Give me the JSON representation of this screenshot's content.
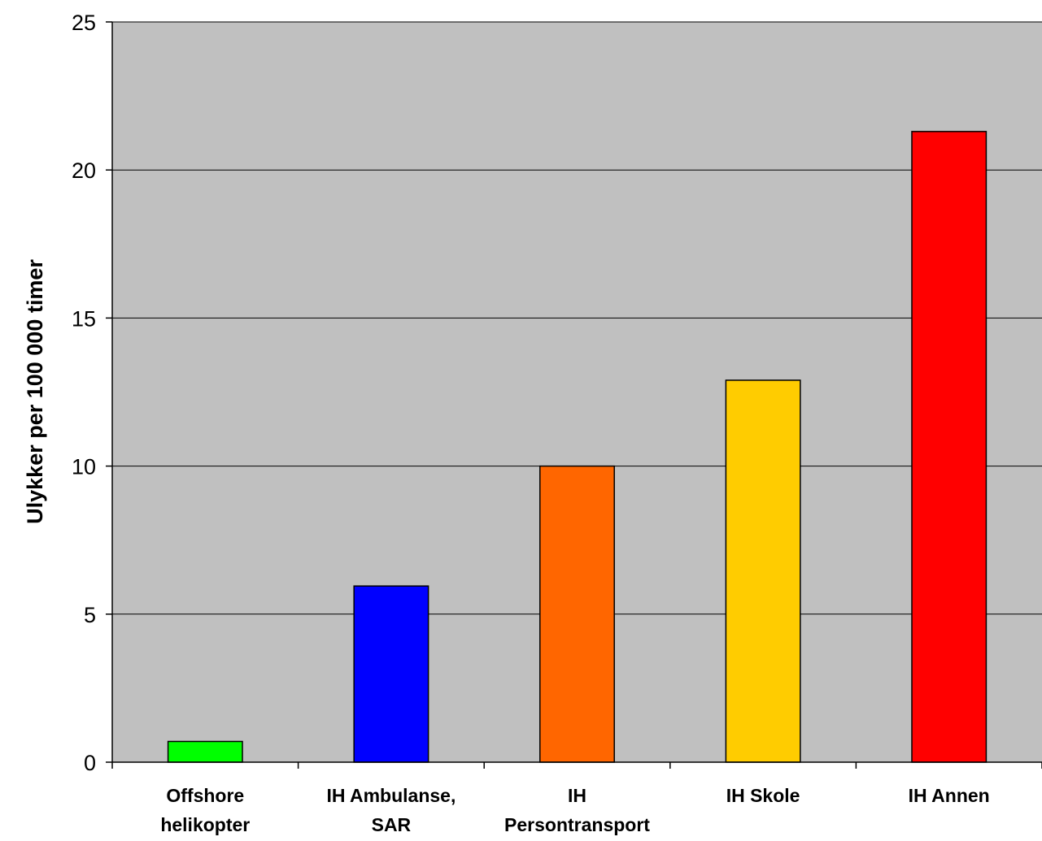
{
  "chart_data": {
    "type": "bar",
    "title": "",
    "xlabel": "",
    "ylabel": "Ulykker per 100 000 timer",
    "ylim": [
      0,
      25
    ],
    "yticks": [
      0,
      5,
      10,
      15,
      20,
      25
    ],
    "grid": true,
    "plot_background": "#c0c0c0",
    "categories": [
      [
        "Offshore",
        "helikopter"
      ],
      [
        "IH Ambulanse,",
        "SAR"
      ],
      [
        "IH",
        "Persontransport"
      ],
      [
        "IH Skole"
      ],
      [
        "IH Annen"
      ]
    ],
    "values": [
      0.7,
      5.95,
      10.0,
      12.9,
      21.3
    ],
    "colors": [
      "#00ff00",
      "#0000ff",
      "#ff6600",
      "#ffcc00",
      "#ff0000"
    ]
  }
}
